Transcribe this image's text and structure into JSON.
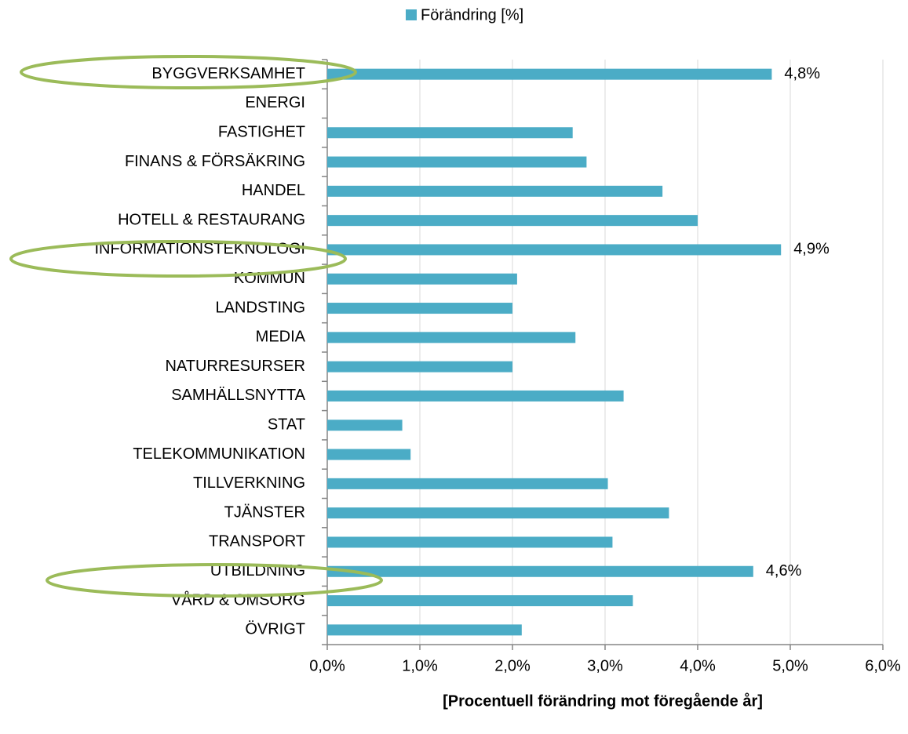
{
  "chart_data": {
    "type": "bar",
    "orientation": "horizontal",
    "legend": "top",
    "categories": [
      "BYGGVERKSAMHET",
      "ENERGI",
      "FASTIGHET",
      "FINANS & FÖRSÄKRING",
      "HANDEL",
      "HOTELL & RESTAURANG",
      "INFORMATIONSTEKNOLOGI",
      "KOMMUN",
      "LANDSTING",
      "MEDIA",
      "NATURRESURSER",
      "SAMHÄLLSNYTTA",
      "STAT",
      "TELEKOMMUNIKATION",
      "TILLVERKNING",
      "TJÄNSTER",
      "TRANSPORT",
      "UTBILDNING",
      "VÅRD & OMSORG",
      "ÖVRIGT"
    ],
    "series": [
      {
        "name": "Förändring [%]",
        "color": "#4bacc6",
        "values": [
          4.8,
          null,
          2.65,
          2.8,
          3.62,
          4.0,
          4.9,
          2.05,
          2.0,
          2.68,
          2.0,
          3.2,
          0.81,
          0.9,
          3.03,
          3.69,
          3.08,
          4.6,
          3.3,
          2.1
        ],
        "value_labels": [
          "4,8%",
          null,
          null,
          null,
          null,
          null,
          "4,9%",
          null,
          null,
          null,
          null,
          null,
          null,
          null,
          null,
          null,
          null,
          "4,6%",
          null,
          null
        ]
      }
    ],
    "xlabel": "[Procentuell förändring mot föregående år]",
    "xlim": [
      0,
      6
    ],
    "xticks": [
      {
        "value": 0,
        "label": "0,0%"
      },
      {
        "value": 1,
        "label": "1,0%"
      },
      {
        "value": 2,
        "label": "2,0%"
      },
      {
        "value": 3,
        "label": "3,0%"
      },
      {
        "value": 4,
        "label": "4,0%"
      },
      {
        "value": 5,
        "label": "5,0%"
      },
      {
        "value": 6,
        "label": "6,0%"
      }
    ],
    "grid": true
  }
}
